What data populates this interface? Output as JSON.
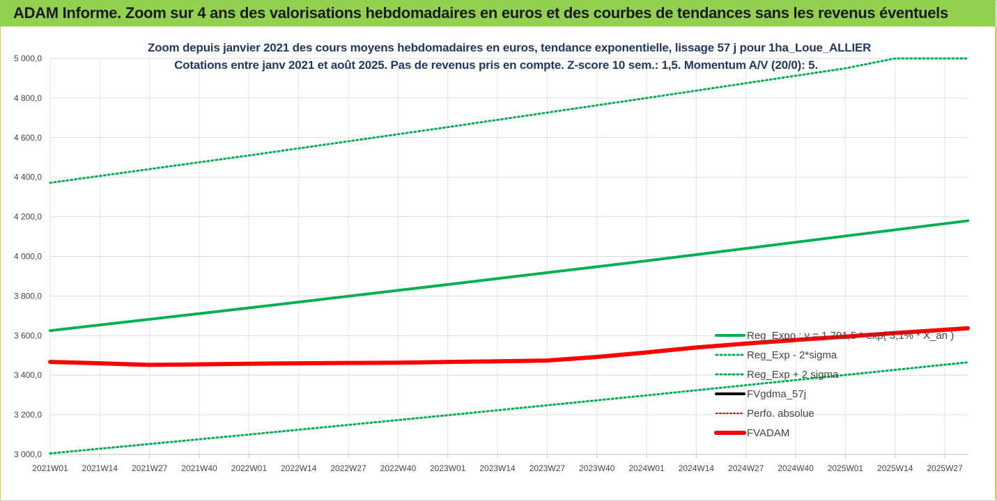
{
  "banner": {
    "title": "ADAM Informe. Zoom sur 4 ans des valorisations hebdomadaires en euros et des courbes de tendances sans les revenus éventuels"
  },
  "chart_data": {
    "type": "line",
    "title": "Zoom depuis janvier 2021 des cours moyens hebdomadaires en euros, tendance exponentielle, lissage 57 j pour 1ha_Loue_ALLIER",
    "subtitle": "Cotations entre janv 2021 et août 2025.  Pas de revenus pris en compte. Z-score 10 sem.: 1,5. Momentum A/V (20/0): 5.",
    "ylim": [
      3000,
      5000
    ],
    "yticks": [
      "3 000,0",
      "3 200,0",
      "3 400,0",
      "3 600,0",
      "3 800,0",
      "4 000,0",
      "4 200,0",
      "4 400,0",
      "4 600,0",
      "4 800,0",
      "5 000,0"
    ],
    "ytick_values": [
      3000,
      3200,
      3400,
      3600,
      3800,
      4000,
      4200,
      4400,
      4600,
      4800,
      5000
    ],
    "xticks": [
      "2021W01",
      "2021W14",
      "2021W27",
      "2021W40",
      "2022W01",
      "2022W14",
      "2022W27",
      "2022W40",
      "2023W01",
      "2023W14",
      "2023W27",
      "2023W40",
      "2024W01",
      "2024W14",
      "2024W27",
      "2024W40",
      "2025W01",
      "2025W14",
      "2025W27"
    ],
    "grid": true,
    "legend_position": "right",
    "series": [
      {
        "name": "Reg_Expo : y = 1 701,5 * exp( 3,1% * X_an )",
        "color": "#00b050",
        "style": "solid",
        "width": 4,
        "x": [
          "2021W01",
          "2022W01",
          "2023W01",
          "2024W01",
          "2025W01",
          "2025W33"
        ],
        "values": [
          3625,
          3740,
          3858,
          3978,
          4103,
          4180
        ]
      },
      {
        "name": "Reg_Exp - 2*sigma",
        "color": "#00b050",
        "style": "dotted",
        "width": 3,
        "x": [
          "2021W01",
          "2022W01",
          "2023W01",
          "2024W01",
          "2025W01",
          "2025W33"
        ],
        "values": [
          3005,
          3100,
          3198,
          3298,
          3401,
          3465
        ]
      },
      {
        "name": "Reg_Exp + 2 sigma",
        "color": "#00b050",
        "style": "dotted",
        "width": 3,
        "x": [
          "2021W01",
          "2022W01",
          "2023W01",
          "2024W01",
          "2025W01",
          "2025W14",
          "2025W33"
        ],
        "values": [
          4372,
          4510,
          4653,
          4800,
          4950,
          5000,
          5000
        ]
      },
      {
        "name": "FVgdma_57j",
        "color": "#000000",
        "style": "solid",
        "width": 4,
        "x": [],
        "values": []
      },
      {
        "name": "Perfo. absolue",
        "color": "#e00000",
        "style": "dotted",
        "width": 2,
        "x": [],
        "values": []
      },
      {
        "name": "FVADAM",
        "color": "#ff0000",
        "style": "solid",
        "width": 6,
        "x": [
          "2021W01",
          "2021W14",
          "2021W27",
          "2021W40",
          "2022W01",
          "2022W14",
          "2022W27",
          "2022W40",
          "2023W01",
          "2023W14",
          "2023W27",
          "2023W40",
          "2024W01",
          "2024W14",
          "2024W27",
          "2024W40",
          "2025W01",
          "2025W14",
          "2025W33"
        ],
        "values": [
          3467,
          3460,
          3452,
          3455,
          3458,
          3460,
          3462,
          3463,
          3467,
          3470,
          3474,
          3492,
          3515,
          3540,
          3560,
          3578,
          3595,
          3613,
          3637
        ]
      }
    ]
  }
}
